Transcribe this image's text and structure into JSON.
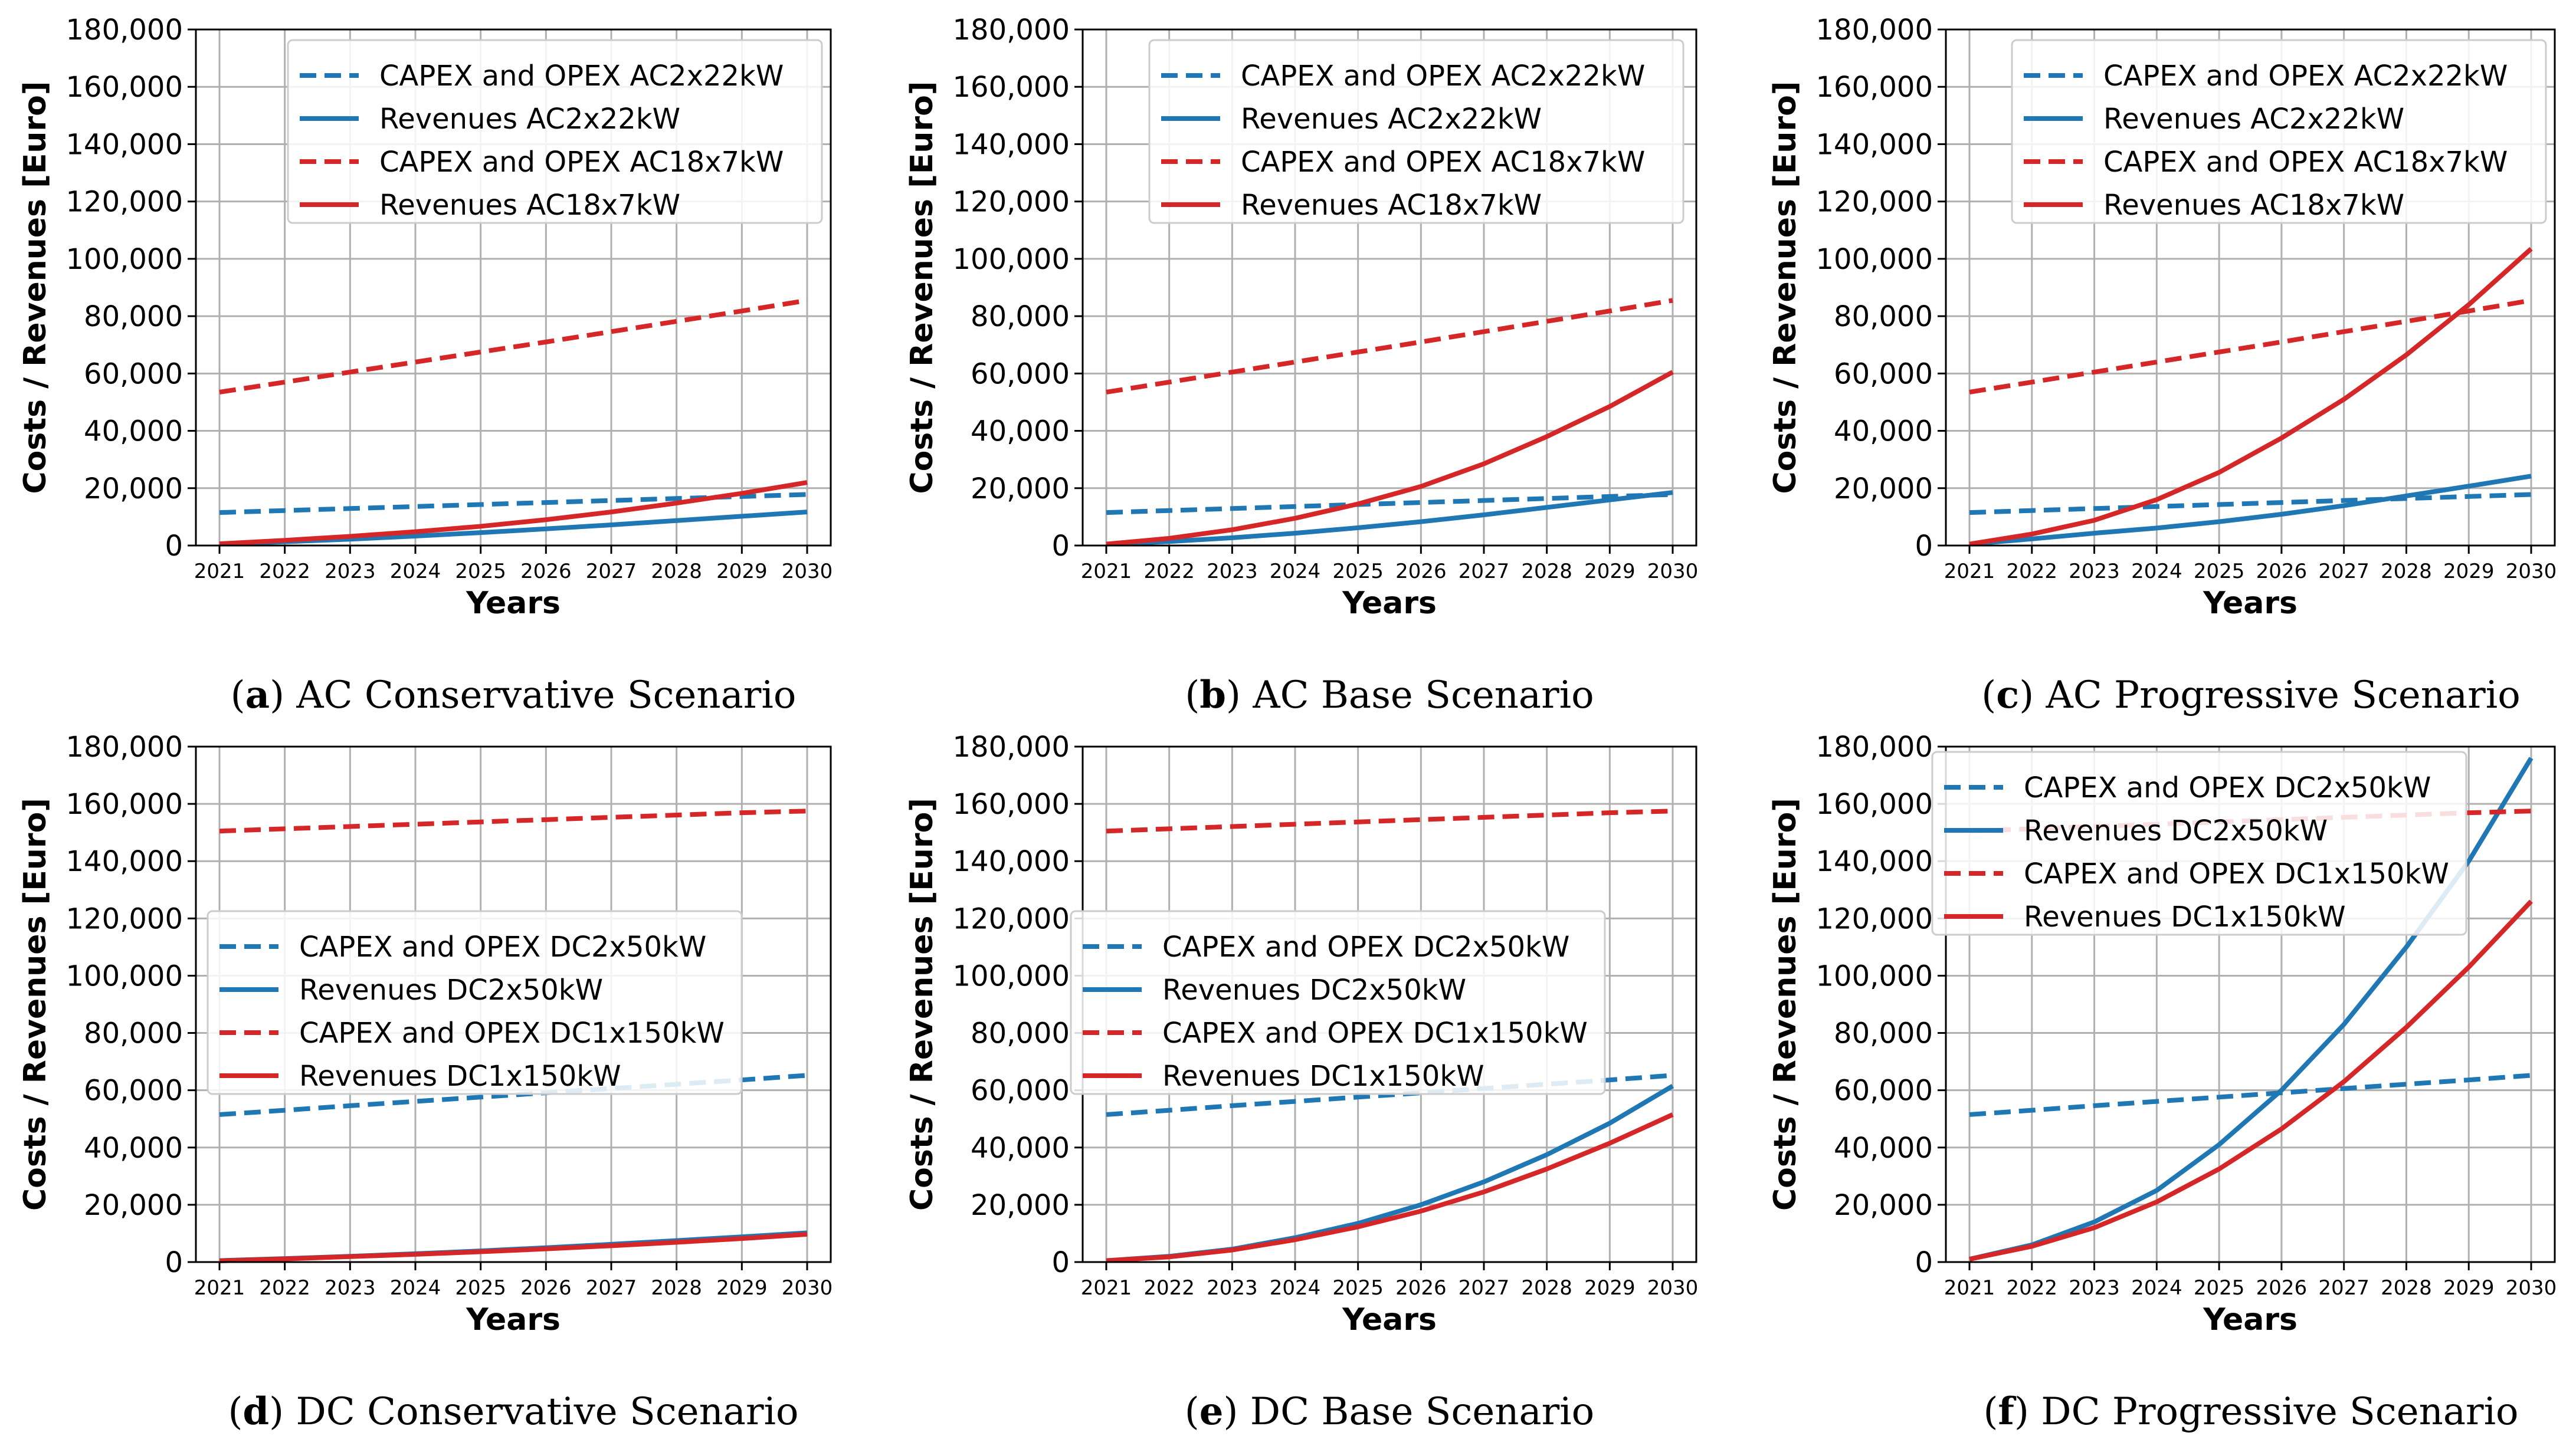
{
  "colors": {
    "blue": "#1f77b4",
    "red": "#d62728",
    "grid": "#b0b0b0"
  },
  "chart_data": [
    {
      "type": "line",
      "caption_letter": "a",
      "caption_text": " AC Conservative Scenario",
      "xlabel": "Years",
      "ylabel": "Costs / Revenues [Euro]",
      "x": [
        "2021",
        "2022",
        "2023",
        "2024",
        "2025",
        "2026",
        "2027",
        "2028",
        "2029",
        "2030"
      ],
      "ylim": [
        0,
        180000
      ],
      "yticks": [
        "0",
        "20,000",
        "40,000",
        "60,000",
        "80,000",
        "100,000",
        "120,000",
        "140,000",
        "160,000",
        "180,000"
      ],
      "grid": true,
      "legend_position": "top-right",
      "series": [
        {
          "name": "CAPEX and OPEX AC2x22kW",
          "style": "dashed",
          "color": "blue",
          "values": [
            11500,
            12200,
            12900,
            13600,
            14300,
            15000,
            15700,
            16400,
            17100,
            17800
          ]
        },
        {
          "name": "Revenues AC2x22kW",
          "style": "solid",
          "color": "blue",
          "values": [
            500,
            1300,
            2200,
            3300,
            4500,
            5800,
            7200,
            8700,
            10200,
            11700
          ]
        },
        {
          "name": "CAPEX and OPEX AC18x7kW",
          "style": "dashed",
          "color": "red",
          "values": [
            53500,
            57000,
            60500,
            64000,
            67500,
            71000,
            74600,
            78200,
            81800,
            85500
          ]
        },
        {
          "name": "Revenues AC18x7kW",
          "style": "solid",
          "color": "red",
          "values": [
            600,
            1800,
            3200,
            4800,
            6700,
            9000,
            11700,
            14800,
            18200,
            22000
          ]
        }
      ]
    },
    {
      "type": "line",
      "caption_letter": "b",
      "caption_text": " AC Base Scenario",
      "xlabel": "Years",
      "ylabel": "Costs / Revenues [Euro]",
      "x": [
        "2021",
        "2022",
        "2023",
        "2024",
        "2025",
        "2026",
        "2027",
        "2028",
        "2029",
        "2030"
      ],
      "ylim": [
        0,
        180000
      ],
      "yticks": [
        "0",
        "20,000",
        "40,000",
        "60,000",
        "80,000",
        "100,000",
        "120,000",
        "140,000",
        "160,000",
        "180,000"
      ],
      "grid": true,
      "legend_position": "top-right",
      "series": [
        {
          "name": "CAPEX and OPEX AC2x22kW",
          "style": "dashed",
          "color": "blue",
          "values": [
            11500,
            12200,
            12900,
            13600,
            14300,
            15000,
            15700,
            16400,
            17100,
            17800
          ]
        },
        {
          "name": "Revenues AC2x22kW",
          "style": "solid",
          "color": "blue",
          "values": [
            500,
            1400,
            2700,
            4300,
            6200,
            8300,
            10700,
            13300,
            15900,
            18500
          ]
        },
        {
          "name": "CAPEX and OPEX AC18x7kW",
          "style": "dashed",
          "color": "red",
          "values": [
            53500,
            57000,
            60500,
            64000,
            67500,
            71000,
            74600,
            78200,
            81800,
            85500
          ]
        },
        {
          "name": "Revenues AC18x7kW",
          "style": "solid",
          "color": "red",
          "values": [
            500,
            2500,
            5500,
            9500,
            14500,
            20600,
            28500,
            38000,
            48500,
            60500
          ]
        }
      ]
    },
    {
      "type": "line",
      "caption_letter": "c",
      "caption_text": " AC Progressive Scenario",
      "xlabel": "Years",
      "ylabel": "Costs / Revenues [Euro]",
      "x": [
        "2021",
        "2022",
        "2023",
        "2024",
        "2025",
        "2026",
        "2027",
        "2028",
        "2029",
        "2030"
      ],
      "ylim": [
        0,
        180000
      ],
      "yticks": [
        "0",
        "20,000",
        "40,000",
        "60,000",
        "80,000",
        "100,000",
        "120,000",
        "140,000",
        "160,000",
        "180,000"
      ],
      "grid": true,
      "legend_position": "top-right",
      "series": [
        {
          "name": "CAPEX and OPEX AC2x22kW",
          "style": "dashed",
          "color": "blue",
          "values": [
            11500,
            12200,
            12900,
            13600,
            14300,
            15000,
            15700,
            16400,
            17100,
            17800
          ]
        },
        {
          "name": "Revenues AC2x22kW",
          "style": "solid",
          "color": "blue",
          "values": [
            500,
            2300,
            4300,
            6100,
            8300,
            10900,
            13900,
            17300,
            20700,
            24200
          ]
        },
        {
          "name": "CAPEX and OPEX AC18x7kW",
          "style": "dashed",
          "color": "red",
          "values": [
            53500,
            57000,
            60500,
            64000,
            67500,
            71000,
            74600,
            78200,
            81800,
            85500
          ]
        },
        {
          "name": "Revenues AC18x7kW",
          "style": "solid",
          "color": "red",
          "values": [
            500,
            4000,
            8800,
            16000,
            25500,
            37500,
            51000,
            66500,
            84000,
            103500
          ]
        }
      ]
    },
    {
      "type": "line",
      "caption_letter": "d",
      "caption_text": " DC Conservative Scenario",
      "xlabel": "Years",
      "ylabel": "Costs / Revenues [Euro]",
      "x": [
        "2021",
        "2022",
        "2023",
        "2024",
        "2025",
        "2026",
        "2027",
        "2028",
        "2029",
        "2030"
      ],
      "ylim": [
        0,
        180000
      ],
      "yticks": [
        "0",
        "20,000",
        "40,000",
        "60,000",
        "80,000",
        "100,000",
        "120,000",
        "140,000",
        "160,000",
        "180,000"
      ],
      "grid": true,
      "legend_position": "center-left",
      "series": [
        {
          "name": "CAPEX and OPEX DC2x50kW",
          "style": "dashed",
          "color": "blue",
          "values": [
            51500,
            53000,
            54600,
            56100,
            57600,
            59100,
            60600,
            62100,
            63600,
            65200
          ]
        },
        {
          "name": "Revenues DC2x50kW",
          "style": "solid",
          "color": "blue",
          "values": [
            500,
            1200,
            2000,
            2900,
            3900,
            5000,
            6200,
            7500,
            8800,
            10200
          ]
        },
        {
          "name": "CAPEX and OPEX DC1x150kW",
          "style": "dashed",
          "color": "red",
          "values": [
            150500,
            151300,
            152100,
            152900,
            153700,
            154500,
            155300,
            156100,
            156900,
            157500
          ]
        },
        {
          "name": "Revenues DC1x150kW",
          "style": "solid",
          "color": "red",
          "values": [
            400,
            1100,
            1900,
            2700,
            3600,
            4600,
            5700,
            6900,
            8200,
            9700
          ]
        }
      ]
    },
    {
      "type": "line",
      "caption_letter": "e",
      "caption_text": " DC Base Scenario",
      "xlabel": "Years",
      "ylabel": "Costs / Revenues [Euro]",
      "x": [
        "2021",
        "2022",
        "2023",
        "2024",
        "2025",
        "2026",
        "2027",
        "2028",
        "2029",
        "2030"
      ],
      "ylim": [
        0,
        180000
      ],
      "yticks": [
        "0",
        "20,000",
        "40,000",
        "60,000",
        "80,000",
        "100,000",
        "120,000",
        "140,000",
        "160,000",
        "180,000"
      ],
      "grid": true,
      "legend_position": "center-left",
      "series": [
        {
          "name": "CAPEX and OPEX DC2x50kW",
          "style": "dashed",
          "color": "blue",
          "values": [
            51500,
            53000,
            54600,
            56100,
            57600,
            59100,
            60600,
            62100,
            63600,
            65200
          ]
        },
        {
          "name": "Revenues DC2x50kW",
          "style": "solid",
          "color": "blue",
          "values": [
            500,
            2000,
            4500,
            8500,
            13500,
            20000,
            28000,
            37500,
            48500,
            61500
          ]
        },
        {
          "name": "CAPEX and OPEX DC1x150kW",
          "style": "dashed",
          "color": "red",
          "values": [
            150500,
            151300,
            152100,
            152900,
            153700,
            154500,
            155300,
            156100,
            156900,
            157500
          ]
        },
        {
          "name": "Revenues DC1x150kW",
          "style": "solid",
          "color": "red",
          "values": [
            500,
            1800,
            4200,
            7800,
            12300,
            17800,
            24500,
            32500,
            41500,
            51500
          ]
        }
      ]
    },
    {
      "type": "line",
      "caption_letter": "f",
      "caption_text": " DC Progressive Scenario",
      "xlabel": "Years",
      "ylabel": "Costs / Revenues [Euro]",
      "x": [
        "2021",
        "2022",
        "2023",
        "2024",
        "2025",
        "2026",
        "2027",
        "2028",
        "2029",
        "2030"
      ],
      "ylim": [
        0,
        180000
      ],
      "yticks": [
        "0",
        "20,000",
        "40,000",
        "60,000",
        "80,000",
        "100,000",
        "120,000",
        "140,000",
        "160,000",
        "180,000"
      ],
      "grid": true,
      "legend_position": "top-left",
      "series": [
        {
          "name": "CAPEX and OPEX DC2x50kW",
          "style": "dashed",
          "color": "blue",
          "values": [
            51500,
            53000,
            54600,
            56100,
            57600,
            59100,
            60600,
            62100,
            63600,
            65200
          ]
        },
        {
          "name": "Revenues DC2x50kW",
          "style": "solid",
          "color": "blue",
          "values": [
            1000,
            6000,
            14000,
            25000,
            41000,
            60000,
            83000,
            110000,
            140000,
            176000
          ]
        },
        {
          "name": "CAPEX and OPEX DC1x150kW",
          "style": "dashed",
          "color": "red",
          "values": [
            150500,
            151300,
            152100,
            152900,
            153700,
            154500,
            155300,
            156100,
            156900,
            157500
          ]
        },
        {
          "name": "Revenues DC1x150kW",
          "style": "solid",
          "color": "red",
          "values": [
            1000,
            5500,
            12000,
            21000,
            32500,
            46500,
            63000,
            82000,
            103000,
            126000
          ]
        }
      ]
    }
  ]
}
